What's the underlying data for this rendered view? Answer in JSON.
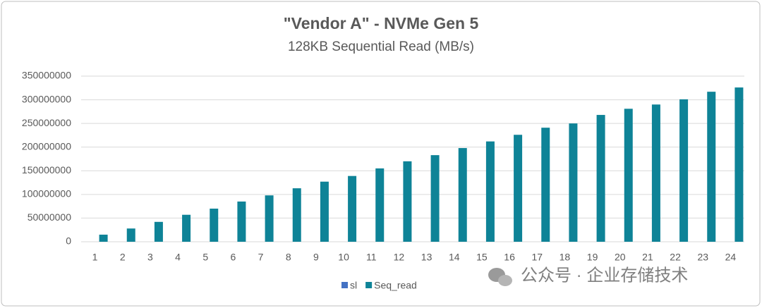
{
  "chart_data": {
    "type": "bar",
    "title": "\"Vendor A\" - NVMe Gen 5",
    "subtitle": "128KB Sequential  Read (MB/s)",
    "annotation": "公众号 · 企业存储技术",
    "categories": [
      "1",
      "2",
      "3",
      "4",
      "5",
      "6",
      "7",
      "8",
      "9",
      "10",
      "11",
      "12",
      "13",
      "14",
      "15",
      "16",
      "17",
      "18",
      "19",
      "20",
      "21",
      "22",
      "23",
      "24"
    ],
    "series": [
      {
        "name": "sl",
        "color": "#4472c4",
        "values": [
          1,
          2,
          3,
          4,
          5,
          6,
          7,
          8,
          9,
          10,
          11,
          12,
          13,
          14,
          15,
          16,
          17,
          18,
          19,
          20,
          21,
          22,
          23,
          24
        ]
      },
      {
        "name": "Seq_read",
        "color": "#0e8397",
        "values": [
          15000000,
          28000000,
          42000000,
          57000000,
          70000000,
          85000000,
          98000000,
          113000000,
          127000000,
          139000000,
          155000000,
          170000000,
          183000000,
          198000000,
          212000000,
          226000000,
          241000000,
          250000000,
          268000000,
          281000000,
          290000000,
          301000000,
          317000000,
          326000000
        ]
      }
    ],
    "ylim": [
      0,
      350000000
    ],
    "yticks": [
      0,
      50000000,
      100000000,
      150000000,
      200000000,
      250000000,
      300000000,
      350000000
    ],
    "grid": true,
    "legend": "bottom"
  }
}
